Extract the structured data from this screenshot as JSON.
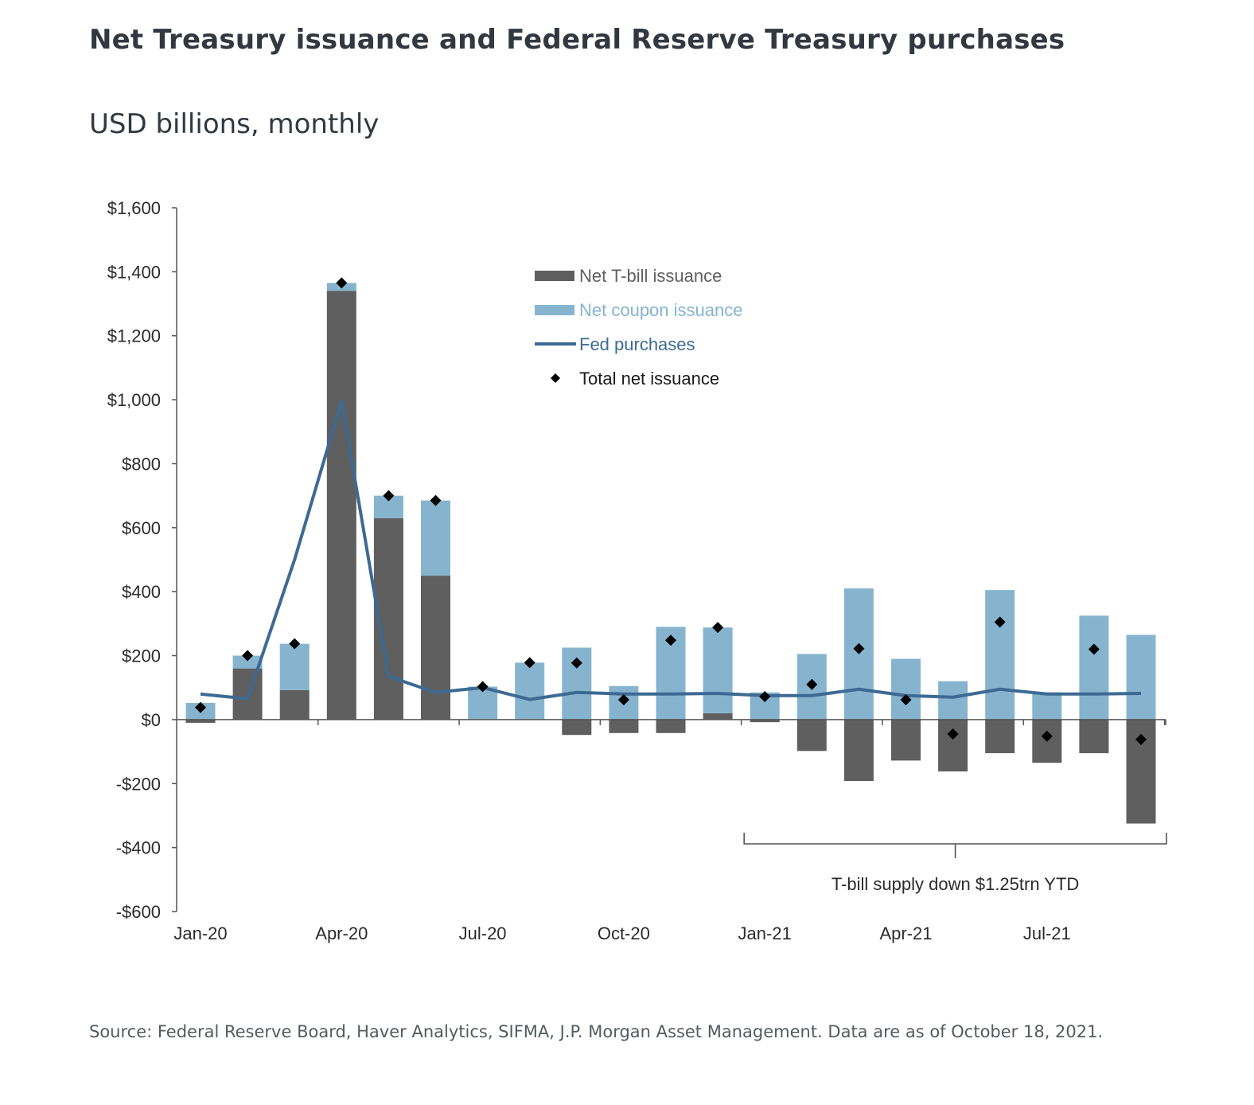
{
  "header": {
    "title": "Net Treasury issuance and Federal Reserve Treasury purchases",
    "subtitle": "USD billions, monthly"
  },
  "footer": {
    "source": "Source: Federal Reserve Board, Haver Analytics, SIFMA, J.P. Morgan Asset Management. Data are as of October 18, 2021."
  },
  "colors": {
    "tbill": "#5f5f5f",
    "coupon": "#86b4cf",
    "fed": "#3d6a93",
    "total": "#000000",
    "axis": "#555555"
  },
  "chart_data": {
    "type": "bar",
    "stacked": true,
    "categories": [
      "Jan-20",
      "Feb-20",
      "Mar-20",
      "Apr-20",
      "May-20",
      "Jun-20",
      "Jul-20",
      "Aug-20",
      "Sep-20",
      "Oct-20",
      "Nov-20",
      "Dec-20",
      "Jan-21",
      "Feb-21",
      "Mar-21",
      "Apr-21",
      "May-21",
      "Jun-21",
      "Jul-21",
      "Aug-21",
      "Sep-21"
    ],
    "x_tick_labels": [
      "Jan-20",
      "Apr-20",
      "Jul-20",
      "Oct-20",
      "Jan-21",
      "Apr-21",
      "Jul-21"
    ],
    "x_tick_indices": [
      0,
      3,
      6,
      9,
      12,
      15,
      18
    ],
    "y_ticks": [
      1600,
      1400,
      1200,
      1000,
      800,
      600,
      400,
      200,
      0,
      -200,
      -400,
      -600
    ],
    "y_tick_labels": [
      "$1,600",
      "$1,400",
      "$1,200",
      "$1,000",
      "$800",
      "$600",
      "$400",
      "$200",
      "$0",
      "-$200",
      "-$400",
      "-$600"
    ],
    "ylim": [
      -600,
      1600
    ],
    "series": [
      {
        "name": "Net T-bill issuance",
        "kind": "bar",
        "values": [
          -10,
          160,
          92,
          1340,
          630,
          450,
          0,
          0,
          -48,
          -42,
          -42,
          20,
          -8,
          -98,
          -192,
          -128,
          -162,
          -105,
          -135,
          -105,
          -325
        ]
      },
      {
        "name": "Net coupon issuance",
        "kind": "bar",
        "values": [
          52,
          40,
          145,
          25,
          70,
          235,
          103,
          178,
          225,
          105,
          290,
          268,
          85,
          205,
          410,
          190,
          120,
          405,
          85,
          325,
          265
        ]
      },
      {
        "name": "Fed purchases",
        "kind": "line",
        "values": [
          80,
          65,
          500,
          995,
          135,
          85,
          100,
          63,
          85,
          80,
          80,
          82,
          75,
          75,
          95,
          75,
          70,
          95,
          80,
          80,
          82
        ]
      },
      {
        "name": "Total net issuance",
        "kind": "scatter",
        "values": [
          38,
          200,
          237,
          1365,
          700,
          685,
          103,
          178,
          177,
          62,
          248,
          288,
          72,
          110,
          222,
          62,
          -45,
          305,
          -52,
          220,
          -62
        ]
      }
    ],
    "legend": {
      "position": "top-center"
    },
    "annotation": {
      "text": "T-bill supply down $1.25trn YTD",
      "from_index": 12,
      "to_index": 20
    },
    "grid": false
  }
}
